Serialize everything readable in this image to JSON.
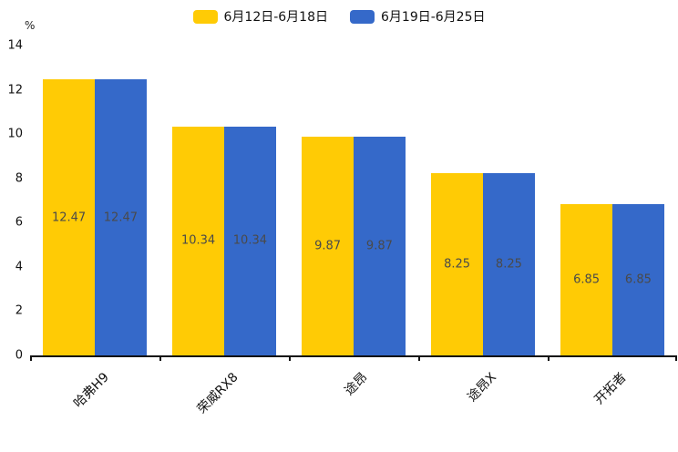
{
  "chart_data": {
    "type": "bar",
    "title": "",
    "xlabel": "",
    "ylabel": "%",
    "ylim": [
      0,
      14
    ],
    "yticks": [
      0,
      2,
      4,
      6,
      8,
      10,
      12,
      14
    ],
    "grid": false,
    "legend_position": "top",
    "value_labels": true,
    "categories": [
      "哈弗H9",
      "荣威RX8",
      "途昂",
      "途昂X",
      "开拓者"
    ],
    "series": [
      {
        "name": "6月12日-6月18日",
        "color": "#FFCB05",
        "values": [
          12.47,
          10.34,
          9.87,
          8.25,
          6.85
        ]
      },
      {
        "name": "6月19日-6月25日",
        "color": "#3569C9",
        "values": [
          12.47,
          10.34,
          9.87,
          8.25,
          6.85
        ]
      }
    ],
    "colors": {
      "axis": "#111111",
      "bar_label_text": "#4a4a4a"
    }
  }
}
